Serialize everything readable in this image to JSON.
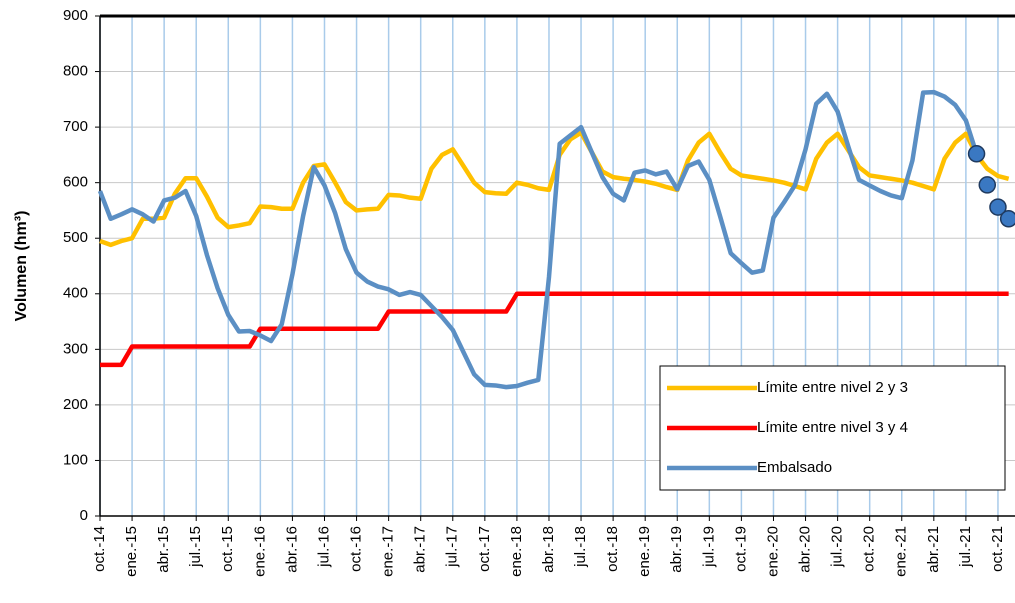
{
  "chart_data": {
    "type": "line",
    "y_label": "Volumen (hm³)",
    "categories": [
      "oct.-14",
      null,
      null,
      "ene.-15",
      null,
      null,
      "abr.-15",
      null,
      null,
      "jul.-15",
      null,
      null,
      "oct.-15",
      null,
      null,
      "ene.-16",
      null,
      null,
      "abr.-16",
      null,
      null,
      "jul.-16",
      null,
      null,
      "oct.-16",
      null,
      null,
      "ene.-17",
      null,
      null,
      "abr.-17",
      null,
      null,
      "jul.-17",
      null,
      null,
      "oct.-17",
      null,
      null,
      "ene.-18",
      null,
      null,
      "abr.-18",
      null,
      null,
      "jul.-18",
      null,
      null,
      "oct.-18",
      null,
      null,
      "ene.-19",
      null,
      null,
      "abr.-19",
      null,
      null,
      "jul.-19",
      null,
      null,
      "oct.-19",
      null,
      null,
      "ene.-20",
      null,
      null,
      "abr.-20",
      null,
      null,
      "jul.-20",
      null,
      null,
      "oct.-20",
      null,
      null,
      "ene.-21",
      null,
      null,
      "abr.-21",
      null,
      null,
      "jul.-21",
      null,
      null,
      "oct.-21",
      null
    ],
    "series": [
      {
        "name": "Límite entre nivel 2 y 3",
        "color": "#ffc000",
        "values": [
          495,
          488,
          495,
          500,
          535,
          535,
          537,
          580,
          608,
          608,
          575,
          537,
          520,
          523,
          527,
          557,
          556,
          553,
          553,
          600,
          630,
          633,
          600,
          565,
          550,
          552,
          553,
          578,
          577,
          573,
          571,
          625,
          650,
          660,
          630,
          600,
          583,
          581,
          580,
          600,
          596,
          590,
          587,
          650,
          678,
          690,
          655,
          620,
          610,
          607,
          605,
          602,
          598,
          592,
          587,
          640,
          672,
          688,
          655,
          625,
          613,
          610,
          607,
          604,
          600,
          594,
          588,
          643,
          672,
          688,
          658,
          628,
          613,
          610,
          607,
          604,
          600,
          594,
          588,
          643,
          672,
          688,
          650,
          625,
          612,
          607
        ]
      },
      {
        "name": "Límite entre nivel 3 y 4",
        "color": "#ff0000",
        "values": [
          272,
          272,
          272,
          305,
          305,
          305,
          305,
          305,
          305,
          305,
          305,
          305,
          305,
          305,
          305,
          337,
          337,
          337,
          337,
          337,
          337,
          337,
          337,
          337,
          337,
          337,
          337,
          368,
          368,
          368,
          368,
          368,
          368,
          368,
          368,
          368,
          368,
          368,
          368,
          400,
          400,
          400,
          400,
          400,
          400,
          400,
          400,
          400,
          400,
          400,
          400,
          400,
          400,
          400,
          400,
          400,
          400,
          400,
          400,
          400,
          400,
          400,
          400,
          400,
          400,
          400,
          400,
          400,
          400,
          400,
          400,
          400,
          400,
          400,
          400,
          400,
          400,
          400,
          400,
          400,
          400,
          400,
          400,
          400,
          400,
          400
        ]
      },
      {
        "name": "Embalsado",
        "color": "#5b8fc4",
        "values": [
          585,
          535,
          543,
          552,
          543,
          530,
          568,
          573,
          585,
          540,
          470,
          410,
          362,
          332,
          333,
          325,
          315,
          345,
          435,
          540,
          628,
          595,
          545,
          480,
          438,
          422,
          413,
          408,
          398,
          403,
          398,
          378,
          358,
          335,
          295,
          255,
          236,
          235,
          232,
          234,
          240,
          245,
          430,
          670,
          685,
          700,
          655,
          610,
          580,
          568,
          618,
          622,
          615,
          620,
          588,
          630,
          638,
          605,
          540,
          473,
          455,
          438,
          442,
          537,
          565,
          595,
          660,
          742,
          760,
          728,
          665,
          605,
          595,
          585,
          577,
          572,
          640,
          762,
          763,
          755,
          740,
          712,
          652,
          null,
          null,
          null
        ]
      },
      {
        "color": "#3a78c2",
        "marker": "circle",
        "values": [
          null,
          null,
          null,
          null,
          null,
          null,
          null,
          null,
          null,
          null,
          null,
          null,
          null,
          null,
          null,
          null,
          null,
          null,
          null,
          null,
          null,
          null,
          null,
          null,
          null,
          null,
          null,
          null,
          null,
          null,
          null,
          null,
          null,
          null,
          null,
          null,
          null,
          null,
          null,
          null,
          null,
          null,
          null,
          null,
          null,
          null,
          null,
          null,
          null,
          null,
          null,
          null,
          null,
          null,
          null,
          null,
          null,
          null,
          null,
          null,
          null,
          null,
          null,
          null,
          null,
          null,
          null,
          null,
          null,
          null,
          null,
          null,
          null,
          null,
          null,
          null,
          null,
          null,
          null,
          null,
          null,
          null,
          652,
          596,
          556,
          535
        ]
      }
    ],
    "ylim": [
      0,
      900
    ],
    "yticks": [
      0,
      100,
      200,
      300,
      400,
      500,
      600,
      700,
      800,
      900
    ],
    "grid": true,
    "legend": "lower right"
  }
}
